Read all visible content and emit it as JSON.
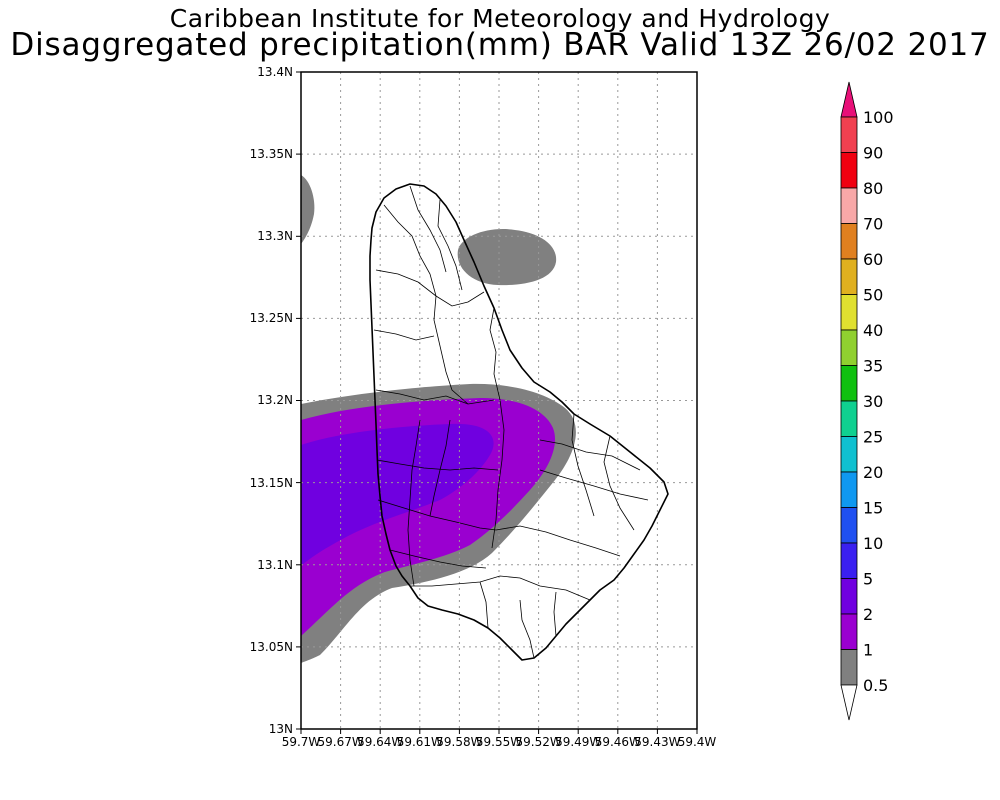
{
  "header": {
    "line1": "Caribbean Institute for Meteorology and Hydrology",
    "line2": "Disaggregated precipitation(mm) BAR Valid 13Z 26/02 2017"
  },
  "map": {
    "lat_ticks": [
      "13.4N",
      "13.35N",
      "13.3N",
      "13.25N",
      "13.2N",
      "13.15N",
      "13.1N",
      "13.05N",
      "13N"
    ],
    "lon_ticks": [
      "59.7W",
      "59.67W",
      "59.64W",
      "59.61W",
      "59.58W",
      "59.55W",
      "59.52W",
      "59.49W",
      "59.46W",
      "59.43W",
      "59.4W"
    ]
  },
  "colorbar": {
    "levels": [
      "0.5",
      "1",
      "2",
      "5",
      "10",
      "15",
      "20",
      "25",
      "30",
      "35",
      "40",
      "50",
      "60",
      "70",
      "80",
      "90",
      "100"
    ],
    "colors": [
      "#808080",
      "#9a00d0",
      "#7000e0",
      "#3a20f0",
      "#2050f0",
      "#1098f0",
      "#10c0d0",
      "#10d090",
      "#10c010",
      "#90d030",
      "#e0e030",
      "#e0b020",
      "#e08020",
      "#f8a8a8",
      "#f00010",
      "#f04050",
      "#e81078"
    ]
  },
  "colors": {
    "land_fill": "#ffffff",
    "frame": "#000000",
    "grid": "#999999"
  }
}
